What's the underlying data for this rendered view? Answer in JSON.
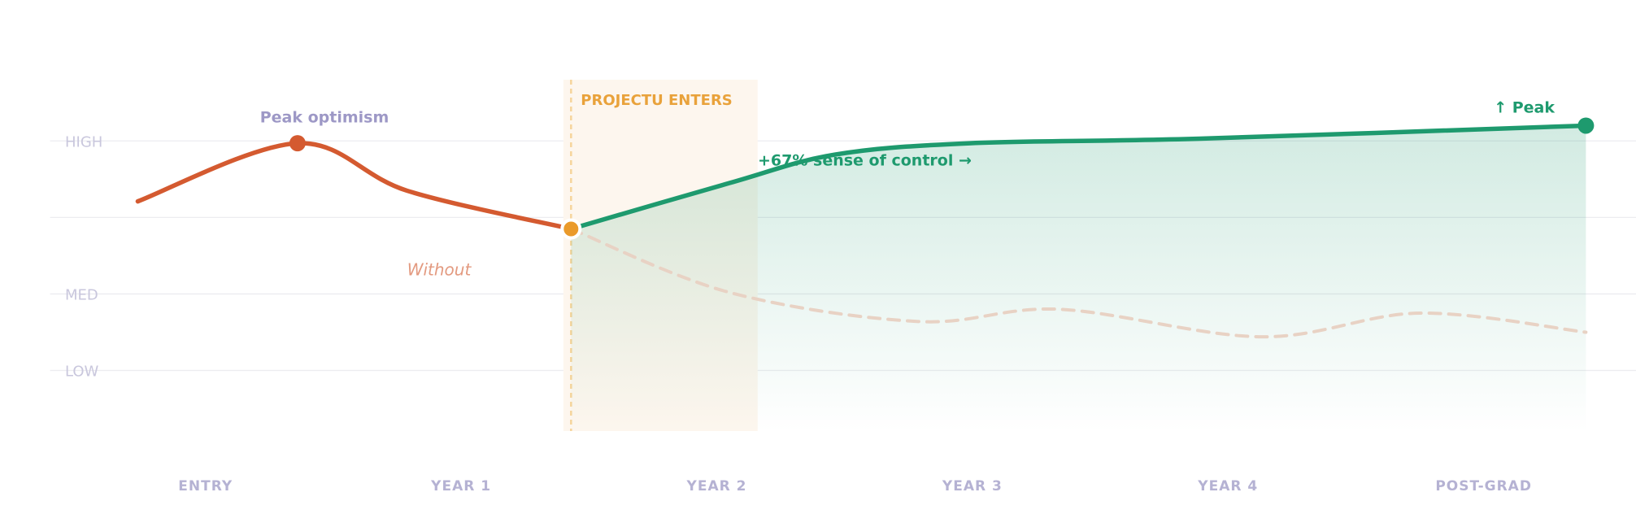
{
  "chart_data": {
    "type": "line",
    "xlim": [
      -0.608,
      5.596
    ],
    "xticks": [
      {
        "value": 0,
        "label": "ENTRY"
      },
      {
        "value": 1,
        "label": "YEAR 1"
      },
      {
        "value": 2,
        "label": "YEAR 2"
      },
      {
        "value": 3,
        "label": "YEAR 3"
      },
      {
        "value": 4,
        "label": "YEAR 4"
      },
      {
        "value": 5,
        "label": "POST-GRAD"
      }
    ],
    "ylim": [
      0.2,
      5
    ],
    "yticks": [
      {
        "value": 1,
        "label": "LOW"
      },
      {
        "value": 2,
        "label": "MED"
      },
      {
        "value": 3,
        "label": null
      },
      {
        "value": 4,
        "label": "HIGH"
      }
    ],
    "grid": true,
    "highlight": {
      "label": "PROJECTU ENTERS",
      "xrange": [
        1.4,
        2.16
      ],
      "marker_x": 1.43
    },
    "series": [
      {
        "color": "#d45a30",
        "x": [
          -0.265,
          0.36,
          0.788,
          1.43
        ],
        "values": [
          3.21,
          3.97,
          3.35,
          2.85
        ]
      },
      {
        "color": "#1e9a6e",
        "x": [
          1.43,
          2.05,
          2.46,
          2.99,
          3.89,
          5.4
        ],
        "values": [
          2.85,
          3.45,
          3.82,
          3.97,
          4.03,
          4.2
        ]
      },
      {
        "name": "Without",
        "color": "#e8d2c4",
        "dashed": true,
        "x": [
          1.43,
          2.05,
          2.79,
          3.34,
          4.13,
          4.75,
          5.4
        ],
        "values": [
          2.85,
          2.02,
          1.64,
          1.8,
          1.44,
          1.75,
          1.5
        ]
      }
    ],
    "annotations": [
      "Peak optimism",
      "+67% sense of control →",
      "↑ Peak"
    ]
  }
}
